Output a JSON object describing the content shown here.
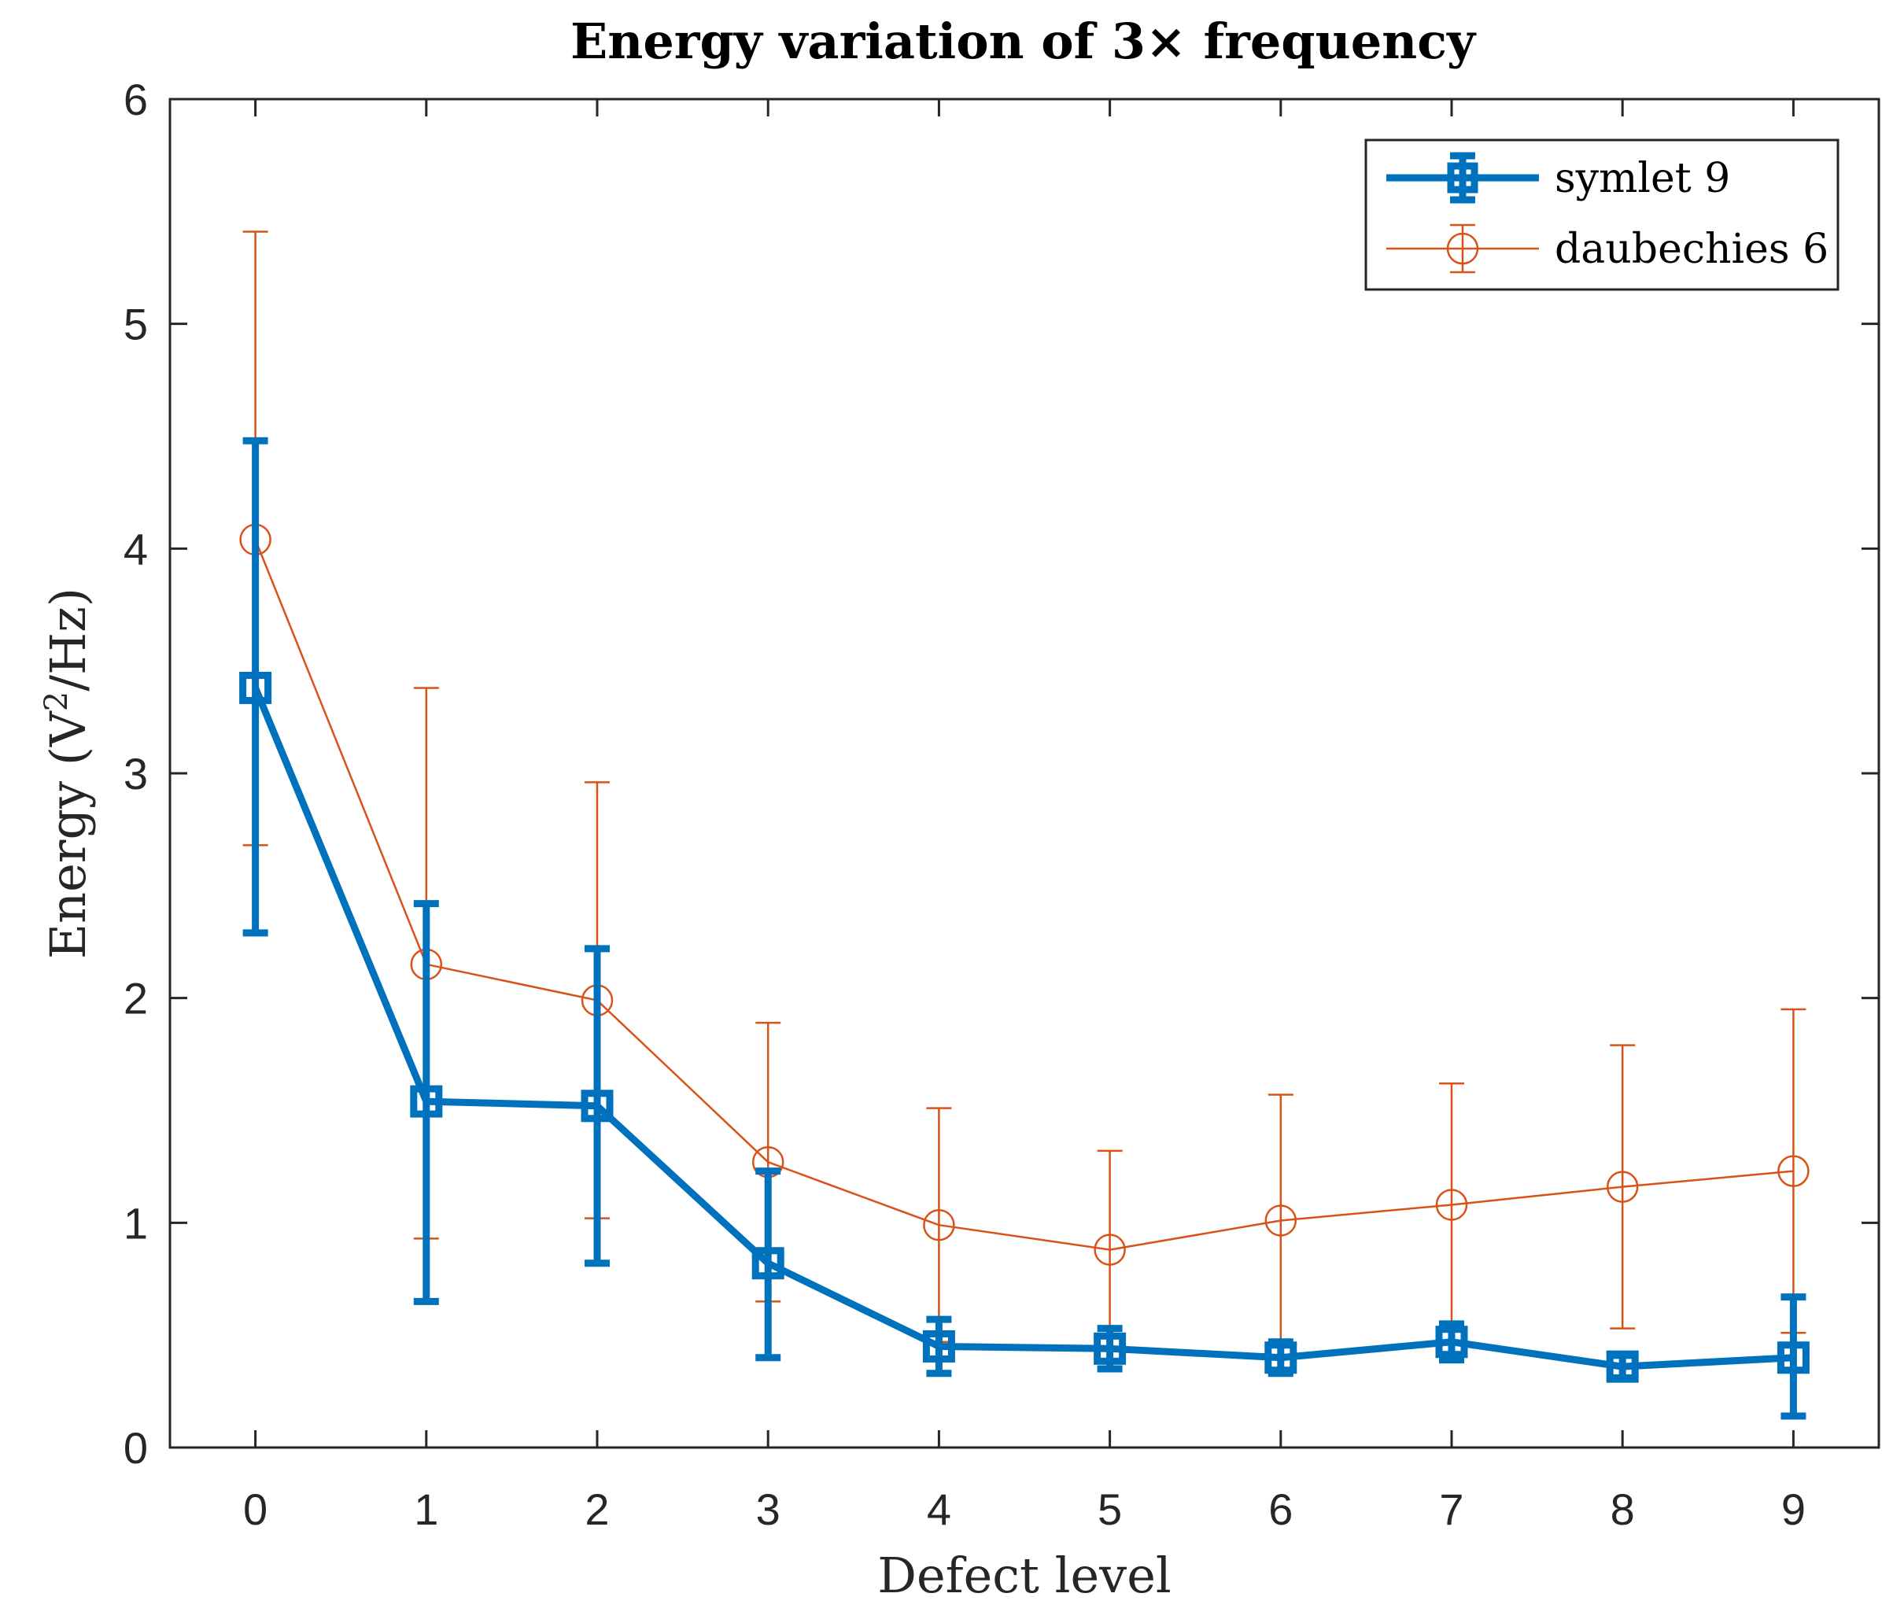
{
  "chart_data": {
    "type": "line",
    "title": "Energy variation of 3× frequency",
    "xlabel": "Defect level",
    "ylabel_prefix": "Energy (V",
    "ylabel_sup": "2",
    "ylabel_suffix": "/Hz)",
    "x": [
      0,
      1,
      2,
      3,
      4,
      5,
      6,
      7,
      8,
      9
    ],
    "xlim": [
      -0.5,
      9.5
    ],
    "ylim": [
      0,
      6
    ],
    "xticks": [
      0,
      1,
      2,
      3,
      4,
      5,
      6,
      7,
      8,
      9
    ],
    "yticks": [
      0,
      1,
      2,
      3,
      4,
      5,
      6
    ],
    "legend_position": "top-right",
    "grid": false,
    "series": [
      {
        "name": "symlet 9",
        "color": "#0072BD",
        "marker": "square",
        "values": [
          3.38,
          1.54,
          1.52,
          0.82,
          0.45,
          0.44,
          0.4,
          0.47,
          0.36,
          0.4
        ],
        "upper": [
          4.48,
          2.42,
          2.22,
          1.23,
          0.57,
          0.53,
          0.47,
          0.55,
          0.41,
          0.67
        ],
        "lower": [
          2.29,
          0.65,
          0.82,
          0.4,
          0.33,
          0.35,
          0.33,
          0.39,
          0.31,
          0.14
        ]
      },
      {
        "name": "daubechies 6",
        "color": "#D95319",
        "marker": "circle",
        "values": [
          4.04,
          2.15,
          1.99,
          1.27,
          0.99,
          0.88,
          1.01,
          1.08,
          1.16,
          1.23
        ],
        "upper": [
          5.41,
          3.38,
          2.96,
          1.89,
          1.51,
          1.32,
          1.57,
          1.62,
          1.79,
          1.95
        ],
        "lower": [
          2.68,
          0.93,
          1.02,
          0.65,
          0.47,
          0.44,
          0.45,
          0.54,
          0.53,
          0.51
        ]
      }
    ]
  }
}
